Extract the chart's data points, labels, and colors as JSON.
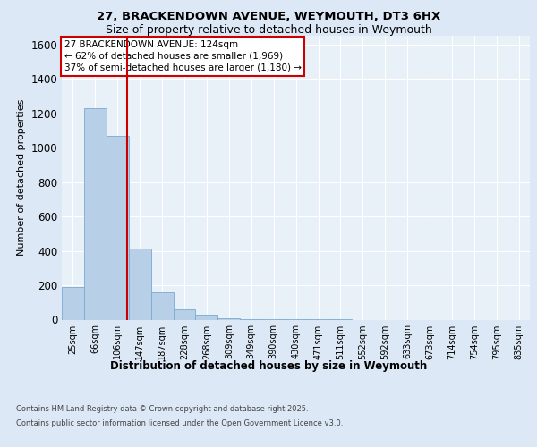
{
  "title_line1": "27, BRACKENDOWN AVENUE, WEYMOUTH, DT3 6HX",
  "title_line2": "Size of property relative to detached houses in Weymouth",
  "xlabel": "Distribution of detached houses by size in Weymouth",
  "ylabel": "Number of detached properties",
  "categories": [
    "25sqm",
    "66sqm",
    "106sqm",
    "147sqm",
    "187sqm",
    "228sqm",
    "268sqm",
    "309sqm",
    "349sqm",
    "390sqm",
    "430sqm",
    "471sqm",
    "511sqm",
    "552sqm",
    "592sqm",
    "633sqm",
    "673sqm",
    "714sqm",
    "754sqm",
    "795sqm",
    "835sqm"
  ],
  "values": [
    190,
    1230,
    1070,
    415,
    160,
    60,
    30,
    10,
    5,
    3,
    2,
    1,
    1,
    0,
    0,
    0,
    0,
    0,
    0,
    0,
    0
  ],
  "bar_color": "#b8cfe8",
  "bar_edge_color": "#7aaad0",
  "red_line_index": 2.44,
  "annotation_title": "27 BRACKENDOWN AVENUE: 124sqm",
  "annotation_line2": "← 62% of detached houses are smaller (1,969)",
  "annotation_line3": "37% of semi-detached houses are larger (1,180) →",
  "annotation_box_edge_color": "#cc0000",
  "ylim": [
    0,
    1650
  ],
  "yticks": [
    0,
    200,
    400,
    600,
    800,
    1000,
    1200,
    1400,
    1600
  ],
  "footnote_line1": "Contains HM Land Registry data © Crown copyright and database right 2025.",
  "footnote_line2": "Contains public sector information licensed under the Open Government Licence v3.0.",
  "background_color": "#dce8f5",
  "plot_bg_color": "#e8f1f8",
  "grid_color": "#ffffff",
  "title1_fontsize": 9.5,
  "title2_fontsize": 9.0,
  "ylabel_fontsize": 8.0,
  "xlabel_fontsize": 8.5,
  "ytick_fontsize": 8.5,
  "xtick_fontsize": 7.0,
  "ann_fontsize": 7.5,
  "footnote_fontsize": 6.0
}
